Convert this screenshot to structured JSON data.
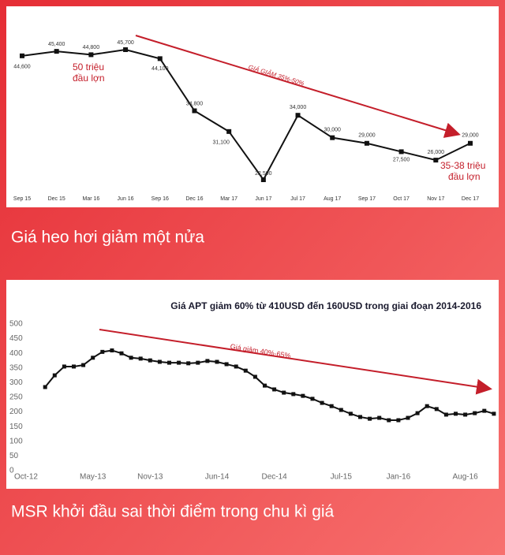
{
  "chart_data": [
    {
      "type": "line",
      "color": "#111111",
      "categories": [
        "Sep 15",
        "Dec 15",
        "Mar 16",
        "Jun 16",
        "Sep 16",
        "Dec 16",
        "Mar 17",
        "Jun 17",
        "Jul 17",
        "Aug 17",
        "Sep 17",
        "Oct 17",
        "Nov 17",
        "Dec 17"
      ],
      "values": [
        44600,
        45400,
        44800,
        45700,
        44100,
        34800,
        31100,
        22500,
        34000,
        30000,
        29000,
        27500,
        26000,
        29000
      ],
      "value_labels": [
        "44,600",
        "45,400",
        "44,800",
        "45,700",
        "44,100",
        "34,800",
        "31,100",
        "22,500",
        "34,000",
        "30,000",
        "29,000",
        "27,500",
        "26,000",
        "29,000"
      ],
      "annotations": [
        "50 triệu",
        "đầu lợn",
        "GIÁ GIẢM 35%-50%",
        "35-38 triệu",
        "đầu lợn"
      ],
      "caption": "Giá heo hơi giảm một nửa"
    },
    {
      "type": "line",
      "color": "#111111",
      "title": "Giá APT giảm 60% từ 410USD đến 160USD trong giai đoạn 2014-2016",
      "categories": [
        "Oct-12",
        null,
        null,
        null,
        null,
        null,
        null,
        "May-13",
        null,
        null,
        null,
        null,
        null,
        "Nov-13",
        null,
        null,
        null,
        null,
        null,
        null,
        "Jun-14",
        null,
        null,
        null,
        null,
        null,
        "Dec-14",
        null,
        null,
        null,
        null,
        null,
        null,
        "Jul-15",
        null,
        null,
        null,
        null,
        null,
        "Jan-16",
        null,
        null,
        null,
        null,
        null,
        null,
        "Aug-16",
        null,
        null,
        null
      ],
      "values": [
        null,
        null,
        285,
        325,
        355,
        355,
        360,
        385,
        405,
        410,
        400,
        385,
        382,
        376,
        371,
        368,
        368,
        366,
        368,
        374,
        371,
        363,
        355,
        341,
        320,
        290,
        277,
        266,
        261,
        255,
        245,
        231,
        220,
        207,
        194,
        183,
        177,
        180,
        172,
        172,
        180,
        196,
        220,
        210,
        191,
        194,
        191,
        196,
        204,
        194
      ],
      "ylim": [
        0,
        500
      ],
      "yticks": [
        0,
        50,
        100,
        150,
        200,
        250,
        300,
        350,
        400,
        450,
        500
      ],
      "annotations": [
        "Giá giảm 40%-65%"
      ],
      "caption": "MSR khởi đầu sai thời điểm trong chu kì giá"
    }
  ]
}
